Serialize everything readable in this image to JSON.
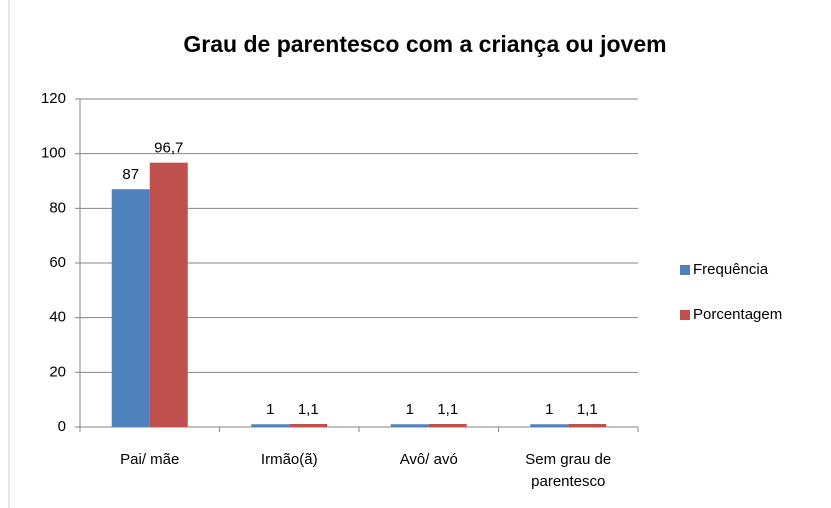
{
  "chart_data": {
    "type": "bar",
    "title": "Grau de parentesco com a criança ou jovem",
    "categories": [
      "Pai/ mãe",
      "Irmão(ã)",
      "Avô/ avó",
      "Sem grau de parentesco"
    ],
    "series": [
      {
        "name": "Frequência",
        "color": "#4f81bd",
        "values": [
          87,
          1,
          1,
          1
        ]
      },
      {
        "name": "Porcentagem",
        "color": "#c0504d",
        "values": [
          96.7,
          1.1,
          1.1,
          1.1
        ],
        "value_labels": [
          "96,7",
          "1,1",
          "1,1",
          "1,1"
        ]
      }
    ],
    "ylim": [
      0,
      120
    ],
    "yticks": [
      0,
      20,
      40,
      60,
      80,
      100,
      120
    ],
    "grid": true,
    "legend": "right"
  }
}
